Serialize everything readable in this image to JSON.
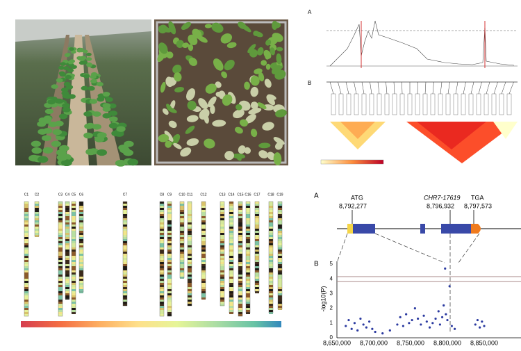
{
  "ld_panel": {
    "label_a": "A",
    "label_b": "B"
  },
  "chromosome_map": {
    "labels": [
      "C1",
      "C2",
      "C3",
      "C4",
      "C5",
      "C6",
      "C7",
      "C8",
      "C9",
      "C10",
      "C11",
      "C12",
      "C13",
      "C14",
      "C15",
      "C16",
      "C17",
      "C18",
      "C19"
    ]
  },
  "gene_panel": {
    "label": "A",
    "start_codon": "ATG",
    "start_position": "8,792,277",
    "snp": "CHR7-17619",
    "snp_position": "8,796,932",
    "stop_codon": "TGA",
    "stop_position": "8,797,573"
  },
  "manhattan": {
    "label": "B",
    "y_label": "-log10(P)",
    "yticks": [
      "5",
      "4",
      "3",
      "2",
      "1",
      "0"
    ],
    "xticks": [
      "8,650,000",
      "8,700,000",
      "8,750,000",
      "8,800,000",
      "8,850,000"
    ],
    "x": [
      8662000,
      8666000,
      8670000,
      8674000,
      8678000,
      8682000,
      8686000,
      8690000,
      8694000,
      8698000,
      8702000,
      8712000,
      8722000,
      8732000,
      8736000,
      8740000,
      8744000,
      8748000,
      8752000,
      8756000,
      8760000,
      8764000,
      8768000,
      8772000,
      8776000,
      8780000,
      8784000,
      8788000,
      8790000,
      8793000,
      8795000,
      8796932,
      8798000,
      8800000,
      8803000,
      8806000,
      8810000,
      8838000,
      8841000,
      8844000,
      8847000,
      8850000
    ],
    "y": [
      0.8,
      1.2,
      0.6,
      1.0,
      0.5,
      1.3,
      0.9,
      0.7,
      1.1,
      0.6,
      0.4,
      0.3,
      0.5,
      0.9,
      1.4,
      0.8,
      1.6,
      1.0,
      1.2,
      2.0,
      1.3,
      0.9,
      1.5,
      1.1,
      0.7,
      1.0,
      1.3,
      1.8,
      0.9,
      1.4,
      2.2,
      4.7,
      1.6,
      1.2,
      3.5,
      0.8,
      0.6,
      0.9,
      1.2,
      0.7,
      1.1,
      0.8
    ]
  }
}
